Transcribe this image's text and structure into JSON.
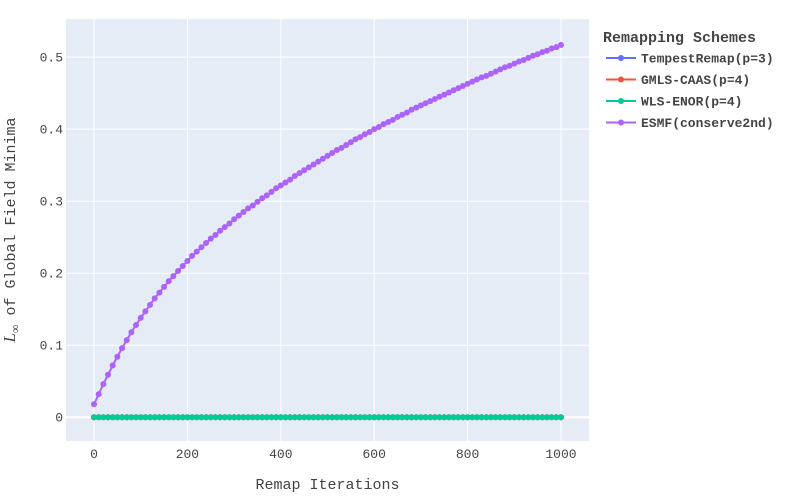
{
  "chart_data": {
    "type": "line",
    "title": "",
    "xlabel": "Remap Iterations",
    "ylabel_math": "L",
    "ylabel_sub": "∞",
    "ylabel_rest": " of Global Field Minima",
    "xlim": [
      -60,
      1060
    ],
    "ylim": [
      -0.033,
      0.553
    ],
    "xticks": [
      0,
      200,
      400,
      600,
      800,
      1000
    ],
    "xtick_labels": [
      "0",
      "200",
      "400",
      "600",
      "800",
      "1000"
    ],
    "yticks": [
      0,
      0.1,
      0.2,
      0.3,
      0.4,
      0.5
    ],
    "ytick_labels": [
      "0",
      "0.1",
      "0.2",
      "0.3",
      "0.4",
      "0.5"
    ],
    "grid": true,
    "legend": {
      "title": "Remapping Schemes",
      "placement": "right"
    },
    "x": [
      0,
      10,
      20,
      30,
      40,
      50,
      60,
      70,
      80,
      90,
      100,
      110,
      120,
      130,
      140,
      150,
      160,
      170,
      180,
      190,
      200,
      210,
      220,
      230,
      240,
      250,
      260,
      270,
      280,
      290,
      300,
      310,
      320,
      330,
      340,
      350,
      360,
      370,
      380,
      390,
      400,
      410,
      420,
      430,
      440,
      450,
      460,
      470,
      480,
      490,
      500,
      510,
      520,
      530,
      540,
      550,
      560,
      570,
      580,
      590,
      600,
      610,
      620,
      630,
      640,
      650,
      660,
      670,
      680,
      690,
      700,
      710,
      720,
      730,
      740,
      750,
      760,
      770,
      780,
      790,
      800,
      810,
      820,
      830,
      840,
      850,
      860,
      870,
      880,
      890,
      900,
      910,
      920,
      930,
      940,
      950,
      960,
      970,
      980,
      990,
      1000
    ],
    "series": [
      {
        "name": "TempestRemap(p=3)",
        "color": "#636efa",
        "values": [
          0,
          0,
          0,
          0,
          0,
          0,
          0,
          0,
          0,
          0,
          0,
          0,
          0,
          0,
          0,
          0,
          0,
          0,
          0,
          0,
          0,
          0,
          0,
          0,
          0,
          0,
          0,
          0,
          0,
          0,
          0,
          0,
          0,
          0,
          0,
          0,
          0,
          0,
          0,
          0,
          0,
          0,
          0,
          0,
          0,
          0,
          0,
          0,
          0,
          0,
          0,
          0,
          0,
          0,
          0,
          0,
          0,
          0,
          0,
          0,
          0,
          0,
          0,
          0,
          0,
          0,
          0,
          0,
          0,
          0,
          0,
          0,
          0,
          0,
          0,
          0,
          0,
          0,
          0,
          0,
          0,
          0,
          0,
          0,
          0,
          0,
          0,
          0,
          0,
          0,
          0,
          0,
          0,
          0,
          0,
          0,
          0,
          0,
          0,
          0,
          0
        ]
      },
      {
        "name": "GMLS-CAAS(p=4)",
        "color": "#ef553b",
        "values": [
          0,
          0,
          0,
          0,
          0,
          0,
          0,
          0,
          0,
          0,
          0,
          0,
          0,
          0,
          0,
          0,
          0,
          0,
          0,
          0,
          0,
          0,
          0,
          0,
          0,
          0,
          0,
          0,
          0,
          0,
          0,
          0,
          0,
          0,
          0,
          0,
          0,
          0,
          0,
          0,
          0,
          0,
          0,
          0,
          0,
          0,
          0,
          0,
          0,
          0,
          0,
          0,
          0,
          0,
          0,
          0,
          0,
          0,
          0,
          0,
          0,
          0,
          0,
          0,
          0,
          0,
          0,
          0,
          0,
          0,
          0,
          0,
          0,
          0,
          0,
          0,
          0,
          0,
          0,
          0,
          0,
          0,
          0,
          0,
          0,
          0,
          0,
          0,
          0,
          0,
          0,
          0,
          0,
          0,
          0,
          0,
          0,
          0,
          0,
          0,
          0
        ]
      },
      {
        "name": "WLS-ENOR(p=4)",
        "color": "#00cc96",
        "values": [
          0,
          0,
          0,
          0,
          0,
          0,
          0,
          0,
          0,
          0,
          0,
          0,
          0,
          0,
          0,
          0,
          0,
          0,
          0,
          0,
          0,
          0,
          0,
          0,
          0,
          0,
          0,
          0,
          0,
          0,
          0,
          0,
          0,
          0,
          0,
          0,
          0,
          0,
          0,
          0,
          0,
          0,
          0,
          0,
          0,
          0,
          0,
          0,
          0,
          0,
          0,
          0,
          0,
          0,
          0,
          0,
          0,
          0,
          0,
          0,
          0,
          0,
          0,
          0,
          0,
          0,
          0,
          0,
          0,
          0,
          0,
          0,
          0,
          0,
          0,
          0,
          0,
          0,
          0,
          0,
          0,
          0,
          0,
          0,
          0,
          0,
          0,
          0,
          0,
          0,
          0,
          0,
          0,
          0,
          0,
          0,
          0,
          0,
          0,
          0,
          0
        ]
      },
      {
        "name": "ESMF(conserve2nd)",
        "color": "#ab63fa",
        "values": [
          0.018,
          0.032,
          0.046,
          0.059,
          0.072,
          0.084,
          0.096,
          0.107,
          0.118,
          0.128,
          0.138,
          0.147,
          0.156,
          0.165,
          0.173,
          0.181,
          0.189,
          0.196,
          0.203,
          0.21,
          0.217,
          0.224,
          0.23,
          0.236,
          0.242,
          0.248,
          0.253,
          0.259,
          0.264,
          0.269,
          0.275,
          0.28,
          0.285,
          0.29,
          0.294,
          0.299,
          0.304,
          0.308,
          0.313,
          0.318,
          0.322,
          0.326,
          0.33,
          0.335,
          0.339,
          0.343,
          0.347,
          0.351,
          0.355,
          0.359,
          0.363,
          0.367,
          0.371,
          0.374,
          0.378,
          0.382,
          0.386,
          0.389,
          0.393,
          0.396,
          0.4,
          0.403,
          0.407,
          0.41,
          0.413,
          0.417,
          0.42,
          0.423,
          0.427,
          0.43,
          0.433,
          0.436,
          0.439,
          0.442,
          0.445,
          0.448,
          0.451,
          0.454,
          0.457,
          0.46,
          0.463,
          0.466,
          0.469,
          0.472,
          0.474,
          0.477,
          0.48,
          0.483,
          0.486,
          0.488,
          0.491,
          0.494,
          0.496,
          0.499,
          0.502,
          0.504,
          0.507,
          0.509,
          0.512,
          0.514,
          0.517
        ]
      }
    ]
  }
}
